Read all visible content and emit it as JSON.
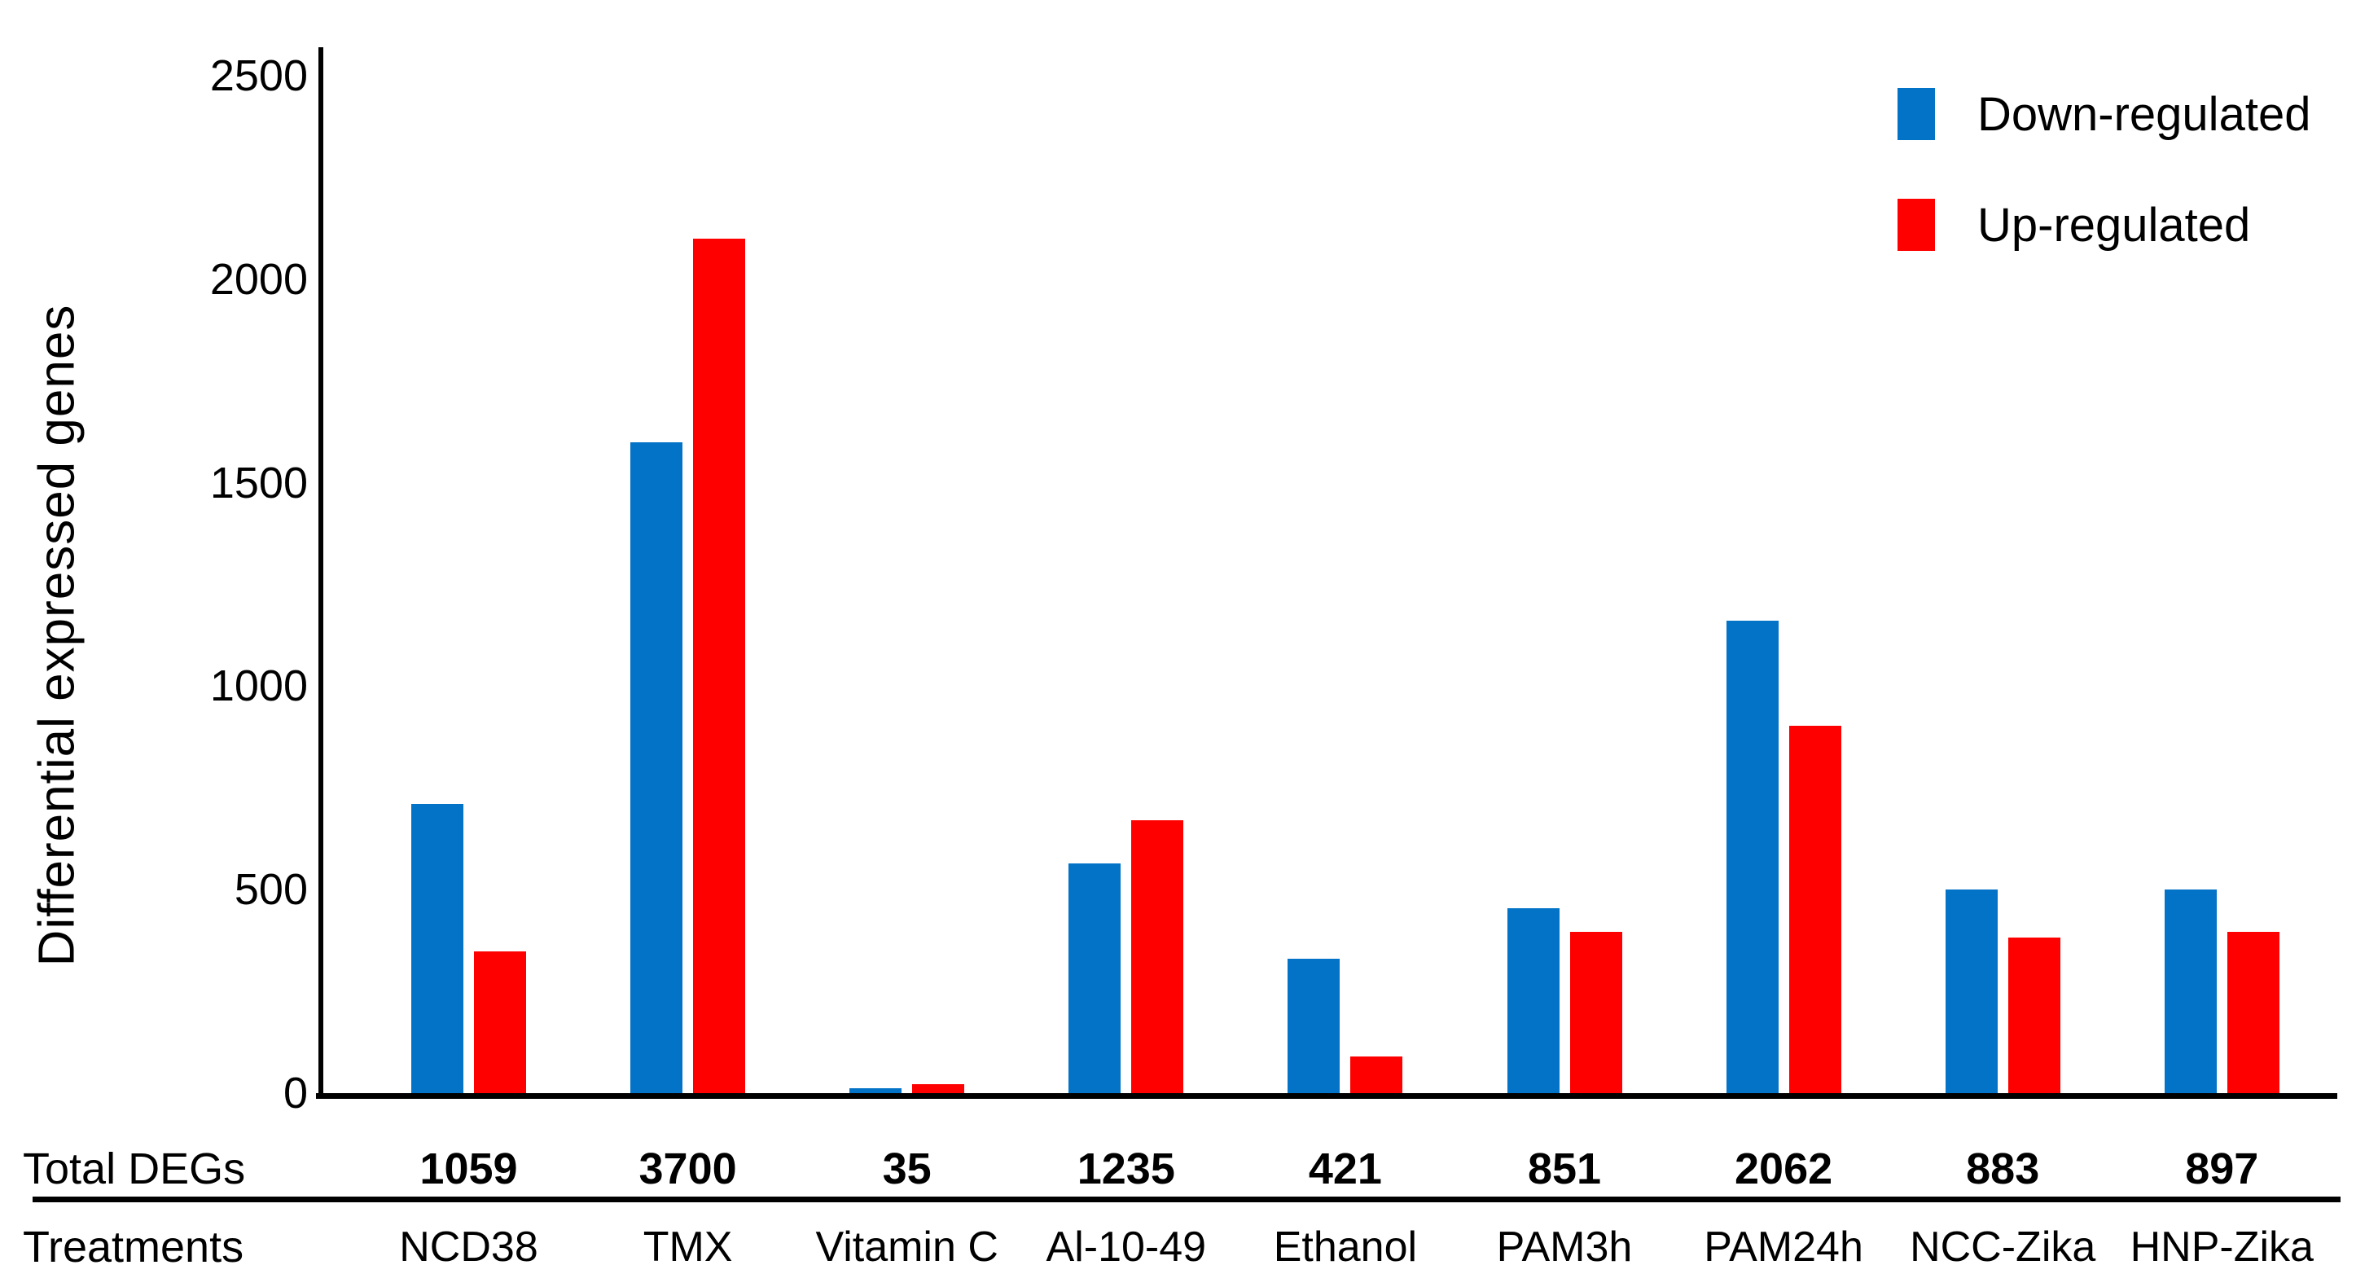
{
  "figure": {
    "y_axis_title": "Differential expressed genes",
    "rows": {
      "totals_label": "Total DEGs",
      "treatments_label": "Treatments"
    },
    "colors": {
      "down": "#0273C6",
      "up": "#FE0000",
      "axis": "#000000"
    }
  },
  "chart_data": {
    "type": "bar",
    "title": "",
    "xlabel": "Treatments",
    "ylabel": "Differential expressed genes",
    "ylim": [
      0,
      2500
    ],
    "yticks": [
      0,
      500,
      1000,
      1500,
      2000,
      2500
    ],
    "grid": false,
    "legend_position": "top-right",
    "categories": [
      "NCD38",
      "TMX",
      "Vitamin C",
      "Al-10-49",
      "Ethanol",
      "PAM3h",
      "PAM24h",
      "NCC-Zika",
      "HNP-Zika"
    ],
    "series": [
      {
        "name": "Down-regulated",
        "color": "#0273C6",
        "values": [
          710,
          1600,
          13,
          565,
          330,
          455,
          1160,
          500,
          500
        ]
      },
      {
        "name": "Up-regulated",
        "color": "#FE0000",
        "values": [
          349,
          2100,
          22,
          670,
          91,
          396,
          902,
          383,
          397
        ]
      }
    ],
    "totals_row_label": "Total DEGs",
    "totals": [
      1059,
      3700,
      35,
      1235,
      421,
      851,
      2062,
      883,
      897
    ]
  }
}
